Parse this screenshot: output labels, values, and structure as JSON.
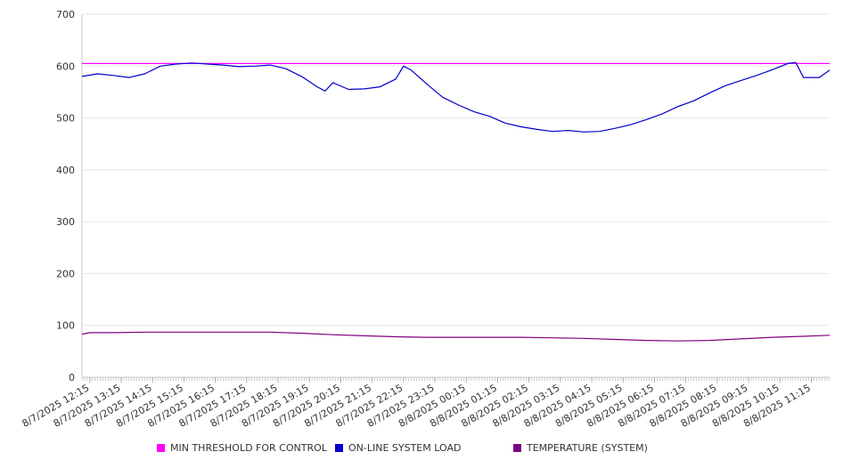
{
  "chart_data": {
    "type": "line",
    "ylim": [
      0,
      700
    ],
    "y_ticks": [
      "0",
      "100",
      "200",
      "300",
      "400",
      "500",
      "600",
      "700"
    ],
    "x_ticks": [
      "8/7/2025 12:15",
      "8/7/2025 13:15",
      "8/7/2025 14:15",
      "8/7/2025 15:15",
      "8/7/2025 16:15",
      "8/7/2025 17:15",
      "8/7/2025 18:15",
      "8/7/2025 19:15",
      "8/7/2025 20:15",
      "8/7/2025 21:15",
      "8/7/2025 22:15",
      "8/7/2025 23:15",
      "8/8/2025 00:15",
      "8/8/2025 01:15",
      "8/8/2025 02:15",
      "8/8/2025 03:15",
      "8/8/2025 04:15",
      "8/8/2025 05:15",
      "8/8/2025 06:15",
      "8/8/2025 07:15",
      "8/8/2025 08:15",
      "8/8/2025 09:15",
      "8/8/2025 10:15",
      "8/8/2025 11:15"
    ],
    "x_start": "8/7/2025 12:00",
    "x_end": "8/8/2025 11:50",
    "grid": true,
    "legend_position": "bottom",
    "series": [
      {
        "name": "MIN THRESHOLD FOR CONTROL",
        "color": "#ff00ff",
        "x": [
          "8/7/2025 12:00",
          "8/8/2025 11:50"
        ],
        "values": [
          605,
          605
        ]
      },
      {
        "name": "ON-LINE SYSTEM LOAD",
        "color": "#0000cc",
        "x": [
          "8/7/2025 12:00",
          "8/7/2025 12:30",
          "8/7/2025 13:00",
          "8/7/2025 13:30",
          "8/7/2025 14:00",
          "8/7/2025 14:30",
          "8/7/2025 15:00",
          "8/7/2025 15:30",
          "8/7/2025 16:00",
          "8/7/2025 16:30",
          "8/7/2025 17:00",
          "8/7/2025 17:30",
          "8/7/2025 18:00",
          "8/7/2025 18:30",
          "8/7/2025 19:00",
          "8/7/2025 19:30",
          "8/7/2025 19:45",
          "8/7/2025 20:00",
          "8/7/2025 20:30",
          "8/7/2025 21:00",
          "8/7/2025 21:30",
          "8/7/2025 22:00",
          "8/7/2025 22:15",
          "8/7/2025 22:30",
          "8/7/2025 23:00",
          "8/7/2025 23:30",
          "8/8/2025 00:00",
          "8/8/2025 00:30",
          "8/8/2025 01:00",
          "8/8/2025 01:30",
          "8/8/2025 02:00",
          "8/8/2025 02:30",
          "8/8/2025 03:00",
          "8/8/2025 03:30",
          "8/8/2025 04:00",
          "8/8/2025 04:30",
          "8/8/2025 05:00",
          "8/8/2025 05:30",
          "8/8/2025 06:00",
          "8/8/2025 06:30",
          "8/8/2025 07:00",
          "8/8/2025 07:30",
          "8/8/2025 08:00",
          "8/8/2025 08:30",
          "8/8/2025 09:00",
          "8/8/2025 09:30",
          "8/8/2025 10:00",
          "8/8/2025 10:30",
          "8/8/2025 10:45",
          "8/8/2025 11:00",
          "8/8/2025 11:30",
          "8/8/2025 11:50"
        ],
        "values": [
          580,
          585,
          582,
          578,
          585,
          600,
          604,
          606,
          604,
          602,
          599,
          600,
          602,
          595,
          580,
          560,
          552,
          568,
          555,
          556,
          560,
          575,
          600,
          592,
          565,
          540,
          525,
          512,
          503,
          490,
          483,
          478,
          474,
          476,
          473,
          474,
          480,
          487,
          497,
          508,
          522,
          533,
          548,
          562,
          572,
          582,
          593,
          605,
          607,
          578,
          578,
          592
        ]
      },
      {
        "name": "TEMPERATURE (SYSTEM)",
        "color": "#800080",
        "x": [
          "8/7/2025 12:00",
          "8/7/2025 12:15",
          "8/7/2025 13:00",
          "8/7/2025 14:00",
          "8/7/2025 15:00",
          "8/7/2025 16:00",
          "8/7/2025 17:00",
          "8/7/2025 18:00",
          "8/7/2025 19:00",
          "8/7/2025 20:00",
          "8/7/2025 21:00",
          "8/7/2025 22:00",
          "8/7/2025 23:00",
          "8/8/2025 00:00",
          "8/8/2025 01:00",
          "8/8/2025 02:00",
          "8/8/2025 03:00",
          "8/8/2025 04:00",
          "8/8/2025 05:00",
          "8/8/2025 06:00",
          "8/8/2025 07:00",
          "8/8/2025 08:00",
          "8/8/2025 09:00",
          "8/8/2025 10:00",
          "8/8/2025 11:00",
          "8/8/2025 11:50"
        ],
        "values": [
          83,
          86,
          86,
          87,
          87,
          87,
          87,
          87,
          85,
          82,
          80,
          78,
          77,
          77,
          77,
          77,
          76,
          75,
          73,
          71,
          70,
          71,
          74,
          77,
          79,
          81
        ]
      }
    ]
  }
}
